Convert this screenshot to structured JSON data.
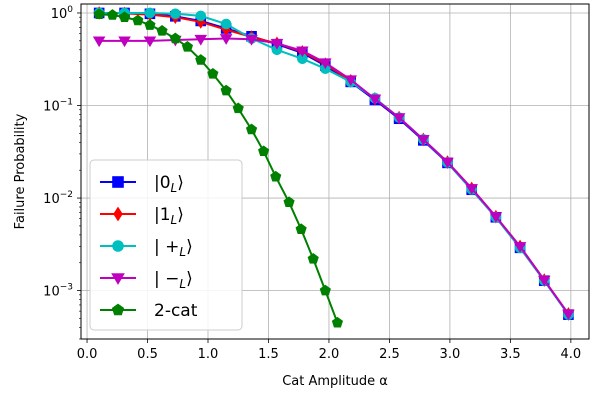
{
  "chart_data": {
    "type": "line",
    "xlabel": "Cat Amplitude α",
    "ylabel": "Failure Probability",
    "xlim": [
      -0.05,
      4.15
    ],
    "ylim": [
      0.0003,
      1.25
    ],
    "y_scale": "log",
    "grid": true,
    "legend_position": "lower-left",
    "x_ticks": [
      {
        "value": 0.0,
        "label": "0.0"
      },
      {
        "value": 0.5,
        "label": "0.5"
      },
      {
        "value": 1.0,
        "label": "1.0"
      },
      {
        "value": 1.5,
        "label": "1.5"
      },
      {
        "value": 2.0,
        "label": "2.0"
      },
      {
        "value": 2.5,
        "label": "2.5"
      },
      {
        "value": 3.0,
        "label": "3.0"
      },
      {
        "value": 3.5,
        "label": "3.5"
      },
      {
        "value": 4.0,
        "label": "4.0"
      }
    ],
    "y_ticks": [
      {
        "value": 1,
        "base": "10",
        "exp": "0"
      },
      {
        "value": 0.1,
        "base": "10",
        "exp": "−1"
      },
      {
        "value": 0.01,
        "base": "10",
        "exp": "−2"
      },
      {
        "value": 0.001,
        "base": "10",
        "exp": "−3"
      }
    ],
    "series": [
      {
        "name": "|0_L⟩",
        "label_main": "|0",
        "label_sub": "L",
        "label_end": "⟩",
        "color": "#0000ff",
        "marker": "square",
        "x": [
          0.1,
          0.31,
          0.52,
          0.73,
          0.94,
          1.15,
          1.36,
          1.57,
          1.78,
          1.97,
          2.18,
          2.38,
          2.58,
          2.78,
          2.98,
          3.18,
          3.38,
          3.58,
          3.78,
          3.98
        ],
        "y": [
          1.0,
          1.0,
          0.98,
          0.92,
          0.82,
          0.68,
          0.56,
          0.46,
          0.37,
          0.27,
          0.18,
          0.115,
          0.072,
          0.042,
          0.024,
          0.0123,
          0.0062,
          0.0029,
          0.00128,
          0.00055
        ]
      },
      {
        "name": "|1_L⟩",
        "label_main": "|1",
        "label_sub": "L",
        "label_end": "⟩",
        "color": "#ff0000",
        "marker": "diamond",
        "x": [
          0.1,
          0.31,
          0.52,
          0.73,
          0.94,
          1.15,
          1.36,
          1.57,
          1.78,
          1.97,
          2.18,
          2.38,
          2.58,
          2.78,
          2.98,
          3.18,
          3.38,
          3.58,
          3.78,
          3.98
        ],
        "y": [
          1.0,
          0.99,
          0.96,
          0.9,
          0.8,
          0.66,
          0.55,
          0.47,
          0.38,
          0.28,
          0.185,
          0.118,
          0.074,
          0.043,
          0.0245,
          0.0127,
          0.0063,
          0.003,
          0.0013,
          0.00056
        ]
      },
      {
        "name": "|+_L⟩",
        "label_main": "| +",
        "label_sub": "L",
        "label_end": "⟩",
        "color": "#00bfbf",
        "marker": "circle",
        "x": [
          0.1,
          0.31,
          0.52,
          0.73,
          0.94,
          1.15,
          1.36,
          1.57,
          1.78,
          1.97,
          2.18,
          2.38,
          2.58,
          2.78,
          2.98,
          3.18,
          3.38,
          3.58,
          3.78,
          3.98
        ],
        "y": [
          1.0,
          1.0,
          1.0,
          0.98,
          0.93,
          0.76,
          0.53,
          0.4,
          0.32,
          0.25,
          0.18,
          0.12,
          0.074,
          0.043,
          0.0242,
          0.0124,
          0.0062,
          0.0029,
          0.00128,
          0.00055
        ]
      },
      {
        "name": "|−_L⟩",
        "label_main": "| −",
        "label_sub": "L",
        "label_end": "⟩",
        "color": "#bf00bf",
        "marker": "triangle-down",
        "x": [
          0.1,
          0.31,
          0.52,
          0.73,
          0.94,
          1.15,
          1.36,
          1.57,
          1.78,
          1.97,
          2.18,
          2.38,
          2.58,
          2.78,
          2.98,
          3.18,
          3.38,
          3.58,
          3.78,
          3.98
        ],
        "y": [
          0.5,
          0.5,
          0.5,
          0.51,
          0.52,
          0.53,
          0.52,
          0.47,
          0.39,
          0.29,
          0.19,
          0.118,
          0.074,
          0.043,
          0.0245,
          0.0127,
          0.0063,
          0.003,
          0.0013,
          0.00056
        ]
      },
      {
        "name": "2-cat",
        "label_main": "2-cat",
        "label_sub": "",
        "label_end": "",
        "color": "#008000",
        "marker": "pentagon",
        "x": [
          0.1,
          0.21,
          0.31,
          0.42,
          0.52,
          0.62,
          0.73,
          0.83,
          0.94,
          1.04,
          1.15,
          1.25,
          1.36,
          1.46,
          1.56,
          1.67,
          1.77,
          1.87,
          1.97,
          2.07
        ],
        "y": [
          0.97,
          0.95,
          0.9,
          0.83,
          0.74,
          0.64,
          0.53,
          0.43,
          0.31,
          0.22,
          0.145,
          0.093,
          0.055,
          0.032,
          0.017,
          0.009,
          0.0046,
          0.0022,
          0.001,
          0.00045
        ]
      }
    ]
  }
}
